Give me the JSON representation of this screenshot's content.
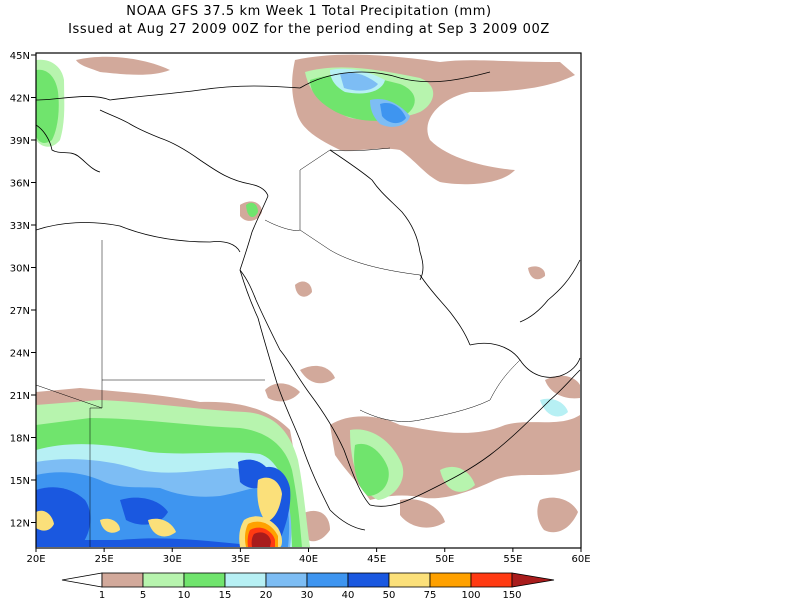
{
  "title": {
    "line1": "NOAA GFS 37.5 km Week 1 Total Precipitation (mm)",
    "line2": "Issued at Aug 27 2009 00Z for the period ending at Sep 3 2009 00Z"
  },
  "map": {
    "lat_labels": [
      "45N",
      "42N",
      "39N",
      "36N",
      "33N",
      "30N",
      "27N",
      "24N",
      "21N",
      "18N",
      "15N",
      "12N"
    ],
    "lon_labels": [
      "20E",
      "25E",
      "30E",
      "35E",
      "40E",
      "45E",
      "50E",
      "55E",
      "60E"
    ]
  },
  "legend": {
    "unit": "mm",
    "thresholds": [
      "1",
      "5",
      "10",
      "15",
      "20",
      "30",
      "40",
      "50",
      "75",
      "100",
      "150"
    ],
    "colors": [
      "#ffffff",
      "#d2a99b",
      "#b7f4ae",
      "#70e46d",
      "#b7f0f4",
      "#7dbdf4",
      "#3e95f0",
      "#1a58e0",
      "#fbe07a",
      "#ffa100",
      "#ff3a12",
      "#a81c1c"
    ]
  }
}
